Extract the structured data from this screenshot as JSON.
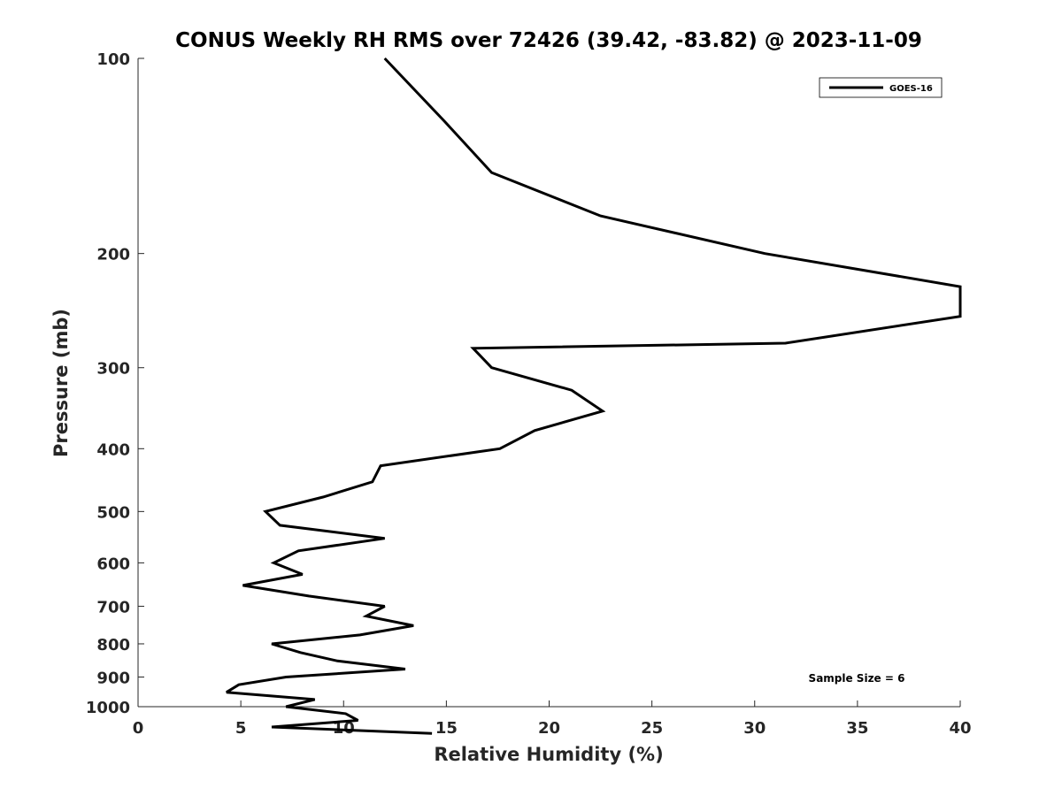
{
  "chart_data": {
    "type": "line",
    "title": "CONUS Weekly RH RMS over 72426 (39.42, -83.82) @ 2023-11-09",
    "xlabel": "Relative Humidity (%)",
    "ylabel": "Pressure (mb)",
    "xlim": [
      0,
      40
    ],
    "ylim": [
      1000,
      100
    ],
    "y_scale": "log",
    "grid": false,
    "legend_position": "top-right",
    "x_ticks": [
      0,
      5,
      10,
      15,
      20,
      25,
      30,
      35,
      40
    ],
    "y_ticks": [
      100,
      200,
      300,
      400,
      500,
      600,
      700,
      800,
      900,
      1000
    ],
    "series": [
      {
        "name": "GOES-16",
        "color": "#000000",
        "points": [
          [
            12.0,
            100
          ],
          [
            14.9,
            125
          ],
          [
            17.2,
            150
          ],
          [
            22.5,
            175
          ],
          [
            30.5,
            200
          ],
          [
            40.0,
            225
          ],
          [
            40.0,
            250
          ],
          [
            31.5,
            275
          ],
          [
            16.3,
            280
          ],
          [
            17.2,
            300
          ],
          [
            21.1,
            325
          ],
          [
            22.6,
            350
          ],
          [
            19.3,
            375
          ],
          [
            17.6,
            400
          ],
          [
            11.8,
            425
          ],
          [
            11.4,
            450
          ],
          [
            9.0,
            475
          ],
          [
            6.2,
            500
          ],
          [
            6.9,
            525
          ],
          [
            12.0,
            550
          ],
          [
            7.8,
            575
          ],
          [
            6.6,
            600
          ],
          [
            8.0,
            625
          ],
          [
            5.1,
            650
          ],
          [
            8.3,
            675
          ],
          [
            12.0,
            700
          ],
          [
            11.1,
            725
          ],
          [
            13.4,
            750
          ],
          [
            10.8,
            775
          ],
          [
            6.5,
            800
          ],
          [
            7.9,
            825
          ],
          [
            9.7,
            850
          ],
          [
            13.0,
            875
          ],
          [
            7.2,
            900
          ],
          [
            4.9,
            925
          ],
          [
            4.3,
            950
          ],
          [
            8.6,
            975
          ],
          [
            7.2,
            1000
          ],
          [
            10.1,
            1025
          ],
          [
            10.7,
            1050
          ],
          [
            6.5,
            1075
          ],
          [
            14.3,
            1100
          ]
        ]
      }
    ],
    "annotations": [
      "Sample Size = 6"
    ]
  }
}
